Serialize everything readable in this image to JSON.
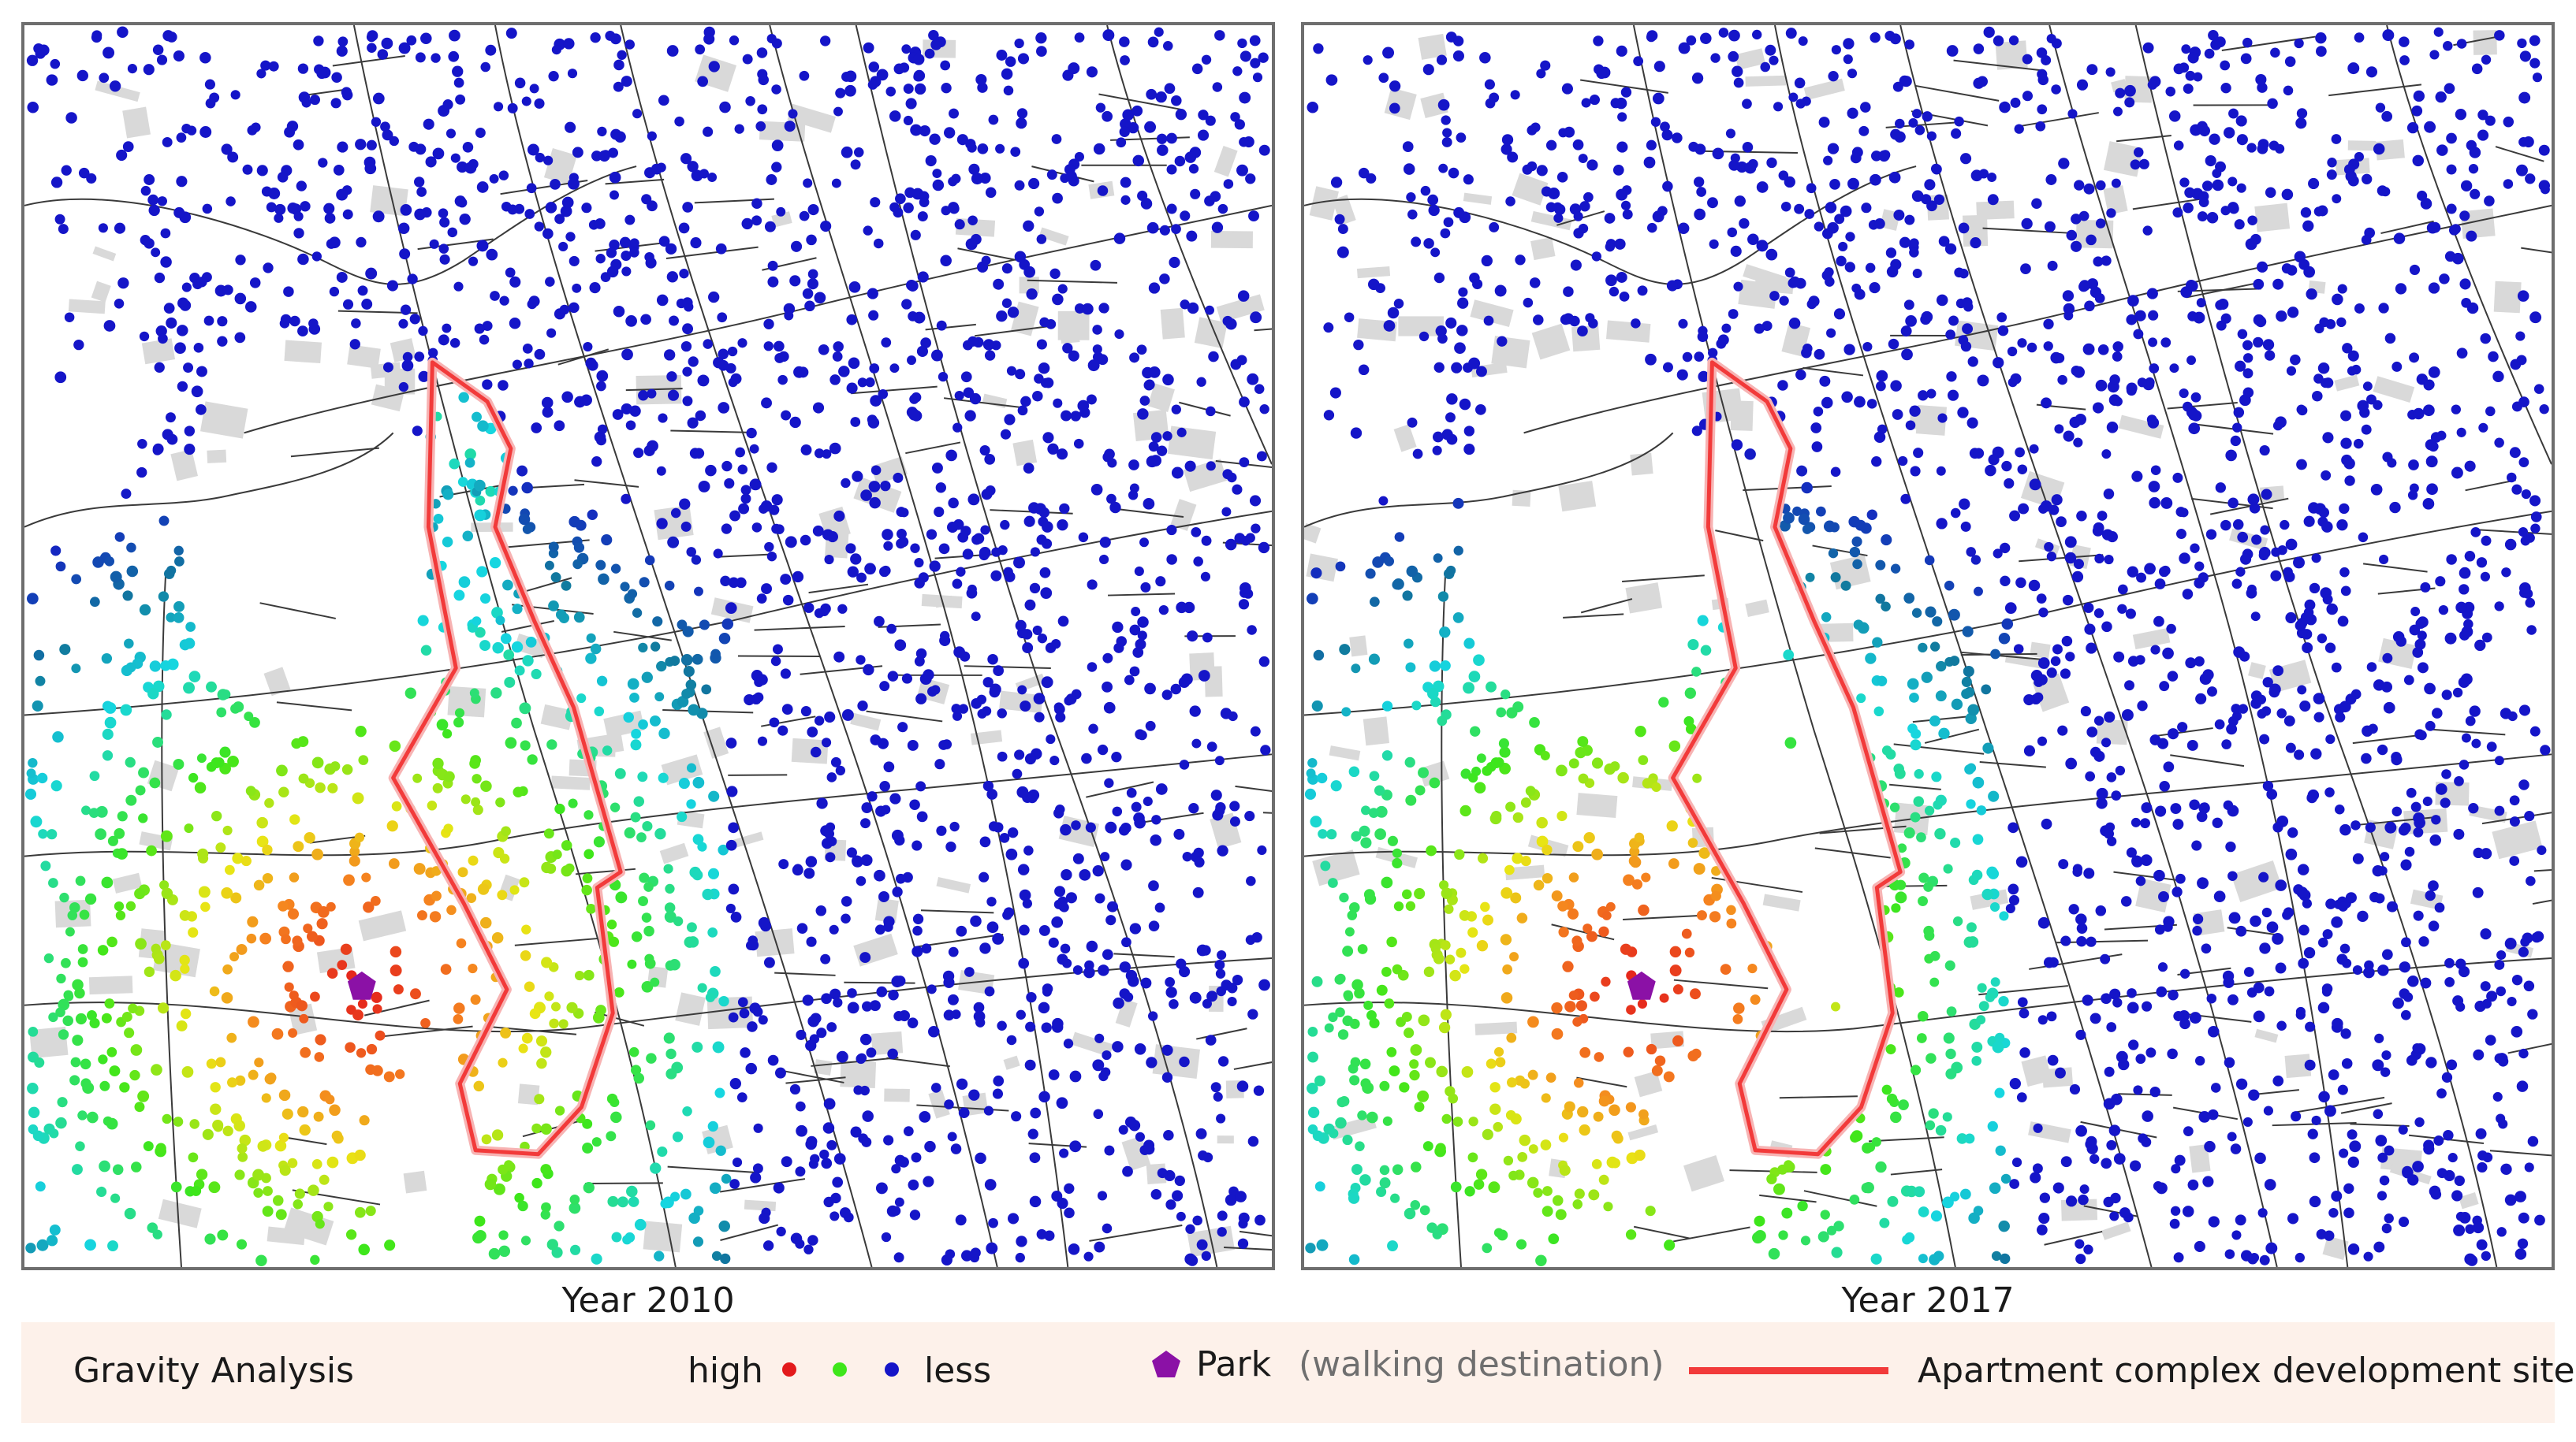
{
  "maps": [
    {
      "caption": "Year 2010",
      "site_has_residences": true
    },
    {
      "caption": "Year 2017",
      "site_has_residences": false
    }
  ],
  "legend": {
    "title": "Gravity Analysis",
    "high_label": "high",
    "less_label": "less",
    "scale_colors": [
      "#e31a1c",
      "#3ee61a",
      "#1515c8"
    ],
    "park_label": "Park",
    "park_note": "(walking destination)",
    "park_color": "#8b11a6",
    "site_label": "Apartment complex development site",
    "site_color": "#f23a3a"
  },
  "colors": {
    "high": "#e31a1c",
    "mid": "#3ee61a",
    "low": "#1515c8",
    "road": "#3a3a3a",
    "building": "#d9d9d9",
    "frame": "#6e6e6e"
  }
}
